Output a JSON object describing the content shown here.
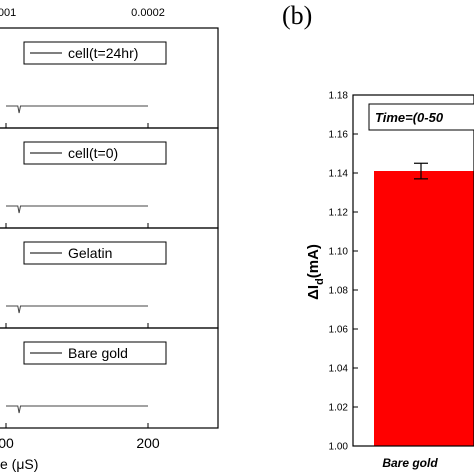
{
  "panel_a": {
    "top_tick_labels": [
      "0001",
      "0.0002"
    ],
    "bottom_tick_labels": [
      "00",
      "200"
    ],
    "xlabel": "e (μS)"
  },
  "panel_b": {
    "label": "(b)",
    "ylabel_main": "ΔI",
    "ylabel_sub": "d",
    "ylabel_unit": "(mA)",
    "annotation": "Time=(0-50"
  },
  "chart_data": [
    {
      "type": "line",
      "title": "",
      "xlabel": "e (μS)",
      "x_ticks": [
        "00",
        "200"
      ],
      "x_top_ticks": [
        "0001",
        "0.0002"
      ],
      "grid": false,
      "subplots": [
        {
          "legend": "cell(t=24hr)",
          "x": [
            0,
            18,
            20,
            22,
            216
          ],
          "y": [
            0,
            0,
            -1,
            0,
            0
          ]
        },
        {
          "legend": "cell(t=0)",
          "x": [
            0,
            18,
            20,
            22,
            216
          ],
          "y": [
            0,
            0,
            -1,
            0,
            0
          ]
        },
        {
          "legend": "Gelatin",
          "x": [
            0,
            18,
            20,
            22,
            216
          ],
          "y": [
            0,
            0,
            -1,
            0,
            0
          ]
        },
        {
          "legend": "Bare gold",
          "x": [
            0,
            18,
            20,
            22,
            216
          ],
          "y": [
            0,
            0,
            -1,
            0,
            0
          ]
        }
      ]
    },
    {
      "type": "bar",
      "title": "(b)",
      "categories": [
        "Bare gold"
      ],
      "values": [
        1.141
      ],
      "error": [
        0.004
      ],
      "ylabel": "ΔId(mA)",
      "ylim": [
        1.0,
        1.18
      ],
      "y_ticks": [
        "1.00",
        "1.02",
        "1.04",
        "1.06",
        "1.08",
        "1.10",
        "1.12",
        "1.14",
        "1.16",
        "1.18"
      ],
      "annotation": "Time=(0-50",
      "colors": {
        "bar": "#ff0000"
      },
      "grid": false
    }
  ]
}
